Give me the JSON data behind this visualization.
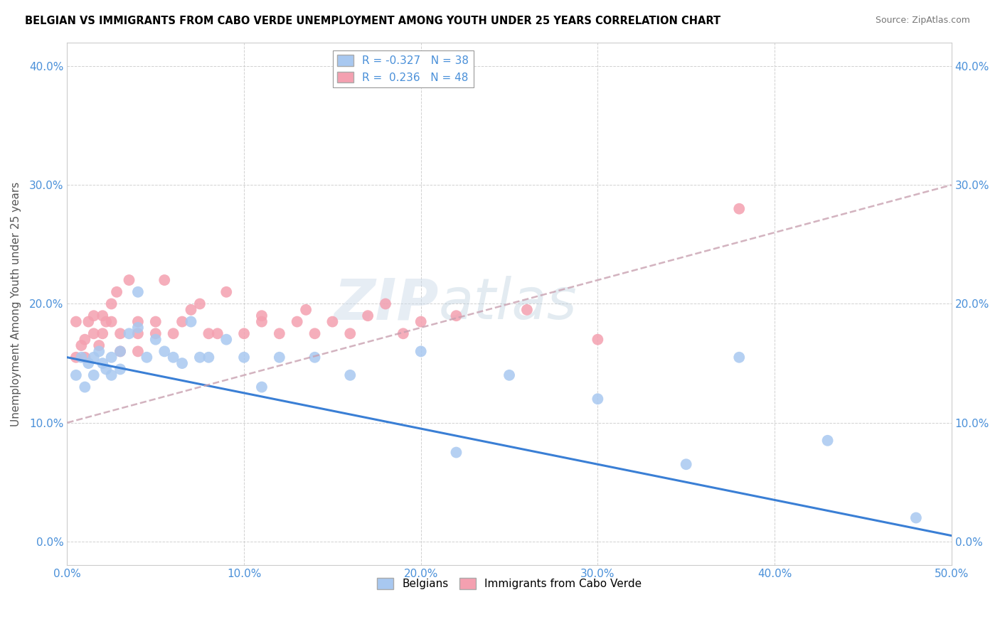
{
  "title": "BELGIAN VS IMMIGRANTS FROM CABO VERDE UNEMPLOYMENT AMONG YOUTH UNDER 25 YEARS CORRELATION CHART",
  "source": "Source: ZipAtlas.com",
  "ylabel": "Unemployment Among Youth under 25 years",
  "xlim": [
    0.0,
    0.5
  ],
  "ylim": [
    -0.02,
    0.42
  ],
  "x_ticks": [
    0.0,
    0.1,
    0.2,
    0.3,
    0.4,
    0.5
  ],
  "x_tick_labels": [
    "0.0%",
    "10.0%",
    "20.0%",
    "30.0%",
    "40.0%",
    "50.0%"
  ],
  "y_ticks": [
    0.0,
    0.1,
    0.2,
    0.3,
    0.4
  ],
  "y_tick_labels": [
    "0.0%",
    "10.0%",
    "20.0%",
    "30.0%",
    "40.0%"
  ],
  "belgian_color": "#a8c8f0",
  "cabo_verde_color": "#f4a0b0",
  "belgian_line_color": "#3a7fd5",
  "cabo_verde_line_color": "#e06080",
  "watermark_zip": "ZIP",
  "watermark_atlas": "atlas",
  "R_belgian": -0.327,
  "N_belgian": 38,
  "R_cabo": 0.236,
  "N_cabo": 48,
  "belgian_x": [
    0.005,
    0.008,
    0.01,
    0.012,
    0.015,
    0.015,
    0.018,
    0.02,
    0.022,
    0.025,
    0.025,
    0.03,
    0.03,
    0.035,
    0.04,
    0.04,
    0.045,
    0.05,
    0.055,
    0.06,
    0.065,
    0.07,
    0.075,
    0.08,
    0.09,
    0.1,
    0.11,
    0.12,
    0.14,
    0.16,
    0.2,
    0.22,
    0.25,
    0.3,
    0.35,
    0.38,
    0.43,
    0.48
  ],
  "belgian_y": [
    0.14,
    0.155,
    0.13,
    0.15,
    0.14,
    0.155,
    0.16,
    0.15,
    0.145,
    0.155,
    0.14,
    0.16,
    0.145,
    0.175,
    0.21,
    0.18,
    0.155,
    0.17,
    0.16,
    0.155,
    0.15,
    0.185,
    0.155,
    0.155,
    0.17,
    0.155,
    0.13,
    0.155,
    0.155,
    0.14,
    0.16,
    0.075,
    0.14,
    0.12,
    0.065,
    0.155,
    0.085,
    0.02
  ],
  "cabo_x": [
    0.005,
    0.005,
    0.008,
    0.01,
    0.01,
    0.012,
    0.015,
    0.015,
    0.018,
    0.02,
    0.02,
    0.022,
    0.025,
    0.025,
    0.028,
    0.03,
    0.03,
    0.035,
    0.04,
    0.04,
    0.04,
    0.05,
    0.05,
    0.055,
    0.06,
    0.065,
    0.07,
    0.075,
    0.08,
    0.085,
    0.09,
    0.1,
    0.11,
    0.11,
    0.12,
    0.13,
    0.135,
    0.14,
    0.15,
    0.16,
    0.17,
    0.18,
    0.19,
    0.2,
    0.22,
    0.26,
    0.3,
    0.38
  ],
  "cabo_y": [
    0.155,
    0.185,
    0.165,
    0.17,
    0.155,
    0.185,
    0.19,
    0.175,
    0.165,
    0.19,
    0.175,
    0.185,
    0.185,
    0.2,
    0.21,
    0.16,
    0.175,
    0.22,
    0.175,
    0.185,
    0.16,
    0.185,
    0.175,
    0.22,
    0.175,
    0.185,
    0.195,
    0.2,
    0.175,
    0.175,
    0.21,
    0.175,
    0.185,
    0.19,
    0.175,
    0.185,
    0.195,
    0.175,
    0.185,
    0.175,
    0.19,
    0.2,
    0.175,
    0.185,
    0.19,
    0.195,
    0.17,
    0.28
  ]
}
